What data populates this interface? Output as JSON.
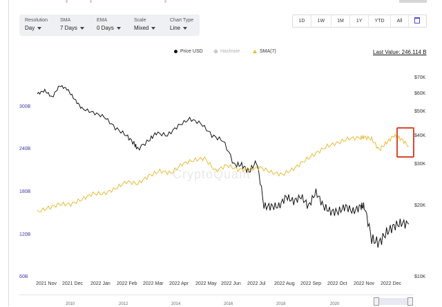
{
  "controls": [
    {
      "label": "Resolution",
      "value": "Day"
    },
    {
      "label": "SMA",
      "value": "7 Days"
    },
    {
      "label": "EMA",
      "value": "0 Days"
    },
    {
      "label": "Scale",
      "value": "Mixed"
    },
    {
      "label": "Chart Type",
      "value": "Line"
    }
  ],
  "ranges": [
    "1D",
    "1W",
    "1M",
    "1Y",
    "YTD",
    "All"
  ],
  "calendar_icon": "calendar-icon",
  "legend": {
    "price": "Price USD",
    "hashrate": "Hashrate",
    "sma": "SMA(7)"
  },
  "last_value": "Last Value: 246.114 B",
  "watermark": "CryptoQuant",
  "colors": {
    "price": "#111111",
    "sma": "#e8bb36",
    "hashrate_inactive": "#c9c9c9",
    "left_axis": "#3b3ba8",
    "highlight": "#d9462c"
  },
  "chart_data": {
    "type": "line",
    "x_ticks": [
      "2021 Nov",
      "2021 Dec",
      "2022 Jan",
      "2022 Feb",
      "2022 Mar",
      "2022 Apr",
      "2022 May",
      "2022 Jun",
      "2022 Jul",
      "2022 Aug",
      "2022 Sep",
      "2022 Oct",
      "2022 Nov",
      "2022 Dec"
    ],
    "left_axis": {
      "ticks": [
        "300B",
        "240B",
        "180B",
        "120B",
        "60B"
      ],
      "range": [
        60,
        330
      ]
    },
    "right_axis": {
      "scale": "log",
      "ticks": [
        "$70K",
        "$60K",
        "$50K",
        "$40K",
        "$30K",
        "$20K",
        "$10K"
      ],
      "range": [
        10,
        75
      ]
    },
    "series": [
      {
        "name": "Price USD",
        "axis": "right",
        "x": [
          0,
          0.02,
          0.04,
          0.06,
          0.08,
          0.1,
          0.12,
          0.15,
          0.18,
          0.21,
          0.24,
          0.26,
          0.27,
          0.3,
          0.32,
          0.35,
          0.38,
          0.41,
          0.44,
          0.47,
          0.5,
          0.53,
          0.55,
          0.57,
          0.59,
          0.61,
          0.63,
          0.65,
          0.67,
          0.69,
          0.71,
          0.73,
          0.75,
          0.77,
          0.79,
          0.81,
          0.83,
          0.85,
          0.87,
          0.88,
          0.9,
          0.92,
          0.94,
          0.96,
          0.98,
          1.0
        ],
        "values": [
          60,
          62,
          58,
          65,
          63,
          57,
          52,
          50,
          48,
          43,
          40,
          37,
          35,
          38,
          41,
          40,
          44,
          47,
          45,
          40,
          38,
          30,
          30,
          28,
          31,
          20,
          20,
          20,
          22,
          21,
          22,
          20,
          23,
          20,
          19,
          19,
          20,
          19,
          20,
          20,
          14.5,
          14,
          15.5,
          16.5,
          17,
          16.8
        ]
      },
      {
        "name": "SMA(7)",
        "axis": "left",
        "x": [
          0,
          0.03,
          0.06,
          0.09,
          0.12,
          0.15,
          0.18,
          0.21,
          0.24,
          0.27,
          0.3,
          0.33,
          0.36,
          0.39,
          0.42,
          0.45,
          0.48,
          0.51,
          0.54,
          0.57,
          0.6,
          0.63,
          0.66,
          0.69,
          0.72,
          0.75,
          0.78,
          0.81,
          0.84,
          0.87,
          0.88,
          0.9,
          0.92,
          0.94,
          0.96,
          0.98,
          1.0
        ],
        "values": [
          152,
          158,
          163,
          163,
          170,
          178,
          178,
          185,
          195,
          192,
          203,
          210,
          207,
          220,
          225,
          228,
          210,
          218,
          212,
          212,
          215,
          208,
          205,
          213,
          225,
          235,
          245,
          250,
          256,
          257,
          258,
          255,
          240,
          250,
          260,
          255,
          245
        ]
      }
    ]
  },
  "navigator": {
    "years": [
      "2010",
      "2012",
      "2014",
      "2016",
      "2018",
      "2020"
    ]
  }
}
